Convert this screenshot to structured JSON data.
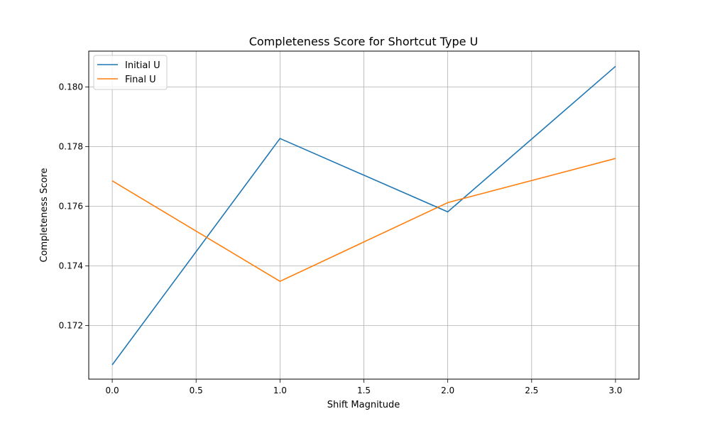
{
  "chart_data": {
    "type": "line",
    "title": "Completeness Score for Shortcut Type U",
    "xlabel": "Shift Magnitude",
    "ylabel": "Completeness Score",
    "x": [
      0,
      1,
      2,
      3
    ],
    "xlim": [
      -0.14,
      3.14
    ],
    "ylim": [
      0.1702,
      0.1812
    ],
    "xticks": [
      0.0,
      0.5,
      1.0,
      1.5,
      2.0,
      2.5,
      3.0
    ],
    "xtick_labels": [
      "0.0",
      "0.5",
      "1.0",
      "1.5",
      "2.0",
      "2.5",
      "3.0"
    ],
    "yticks": [
      0.172,
      0.174,
      0.176,
      0.178,
      0.18
    ],
    "ytick_labels": [
      "0.172",
      "0.174",
      "0.176",
      "0.178",
      "0.180"
    ],
    "grid": true,
    "legend_position": "top-left",
    "series": [
      {
        "name": "Initial U",
        "color": "#1f77b4",
        "values": [
          0.17068,
          0.17827,
          0.17581,
          0.18069
        ]
      },
      {
        "name": "Final U",
        "color": "#ff7f0e",
        "values": [
          0.17685,
          0.17348,
          0.17612,
          0.1776
        ]
      }
    ]
  }
}
